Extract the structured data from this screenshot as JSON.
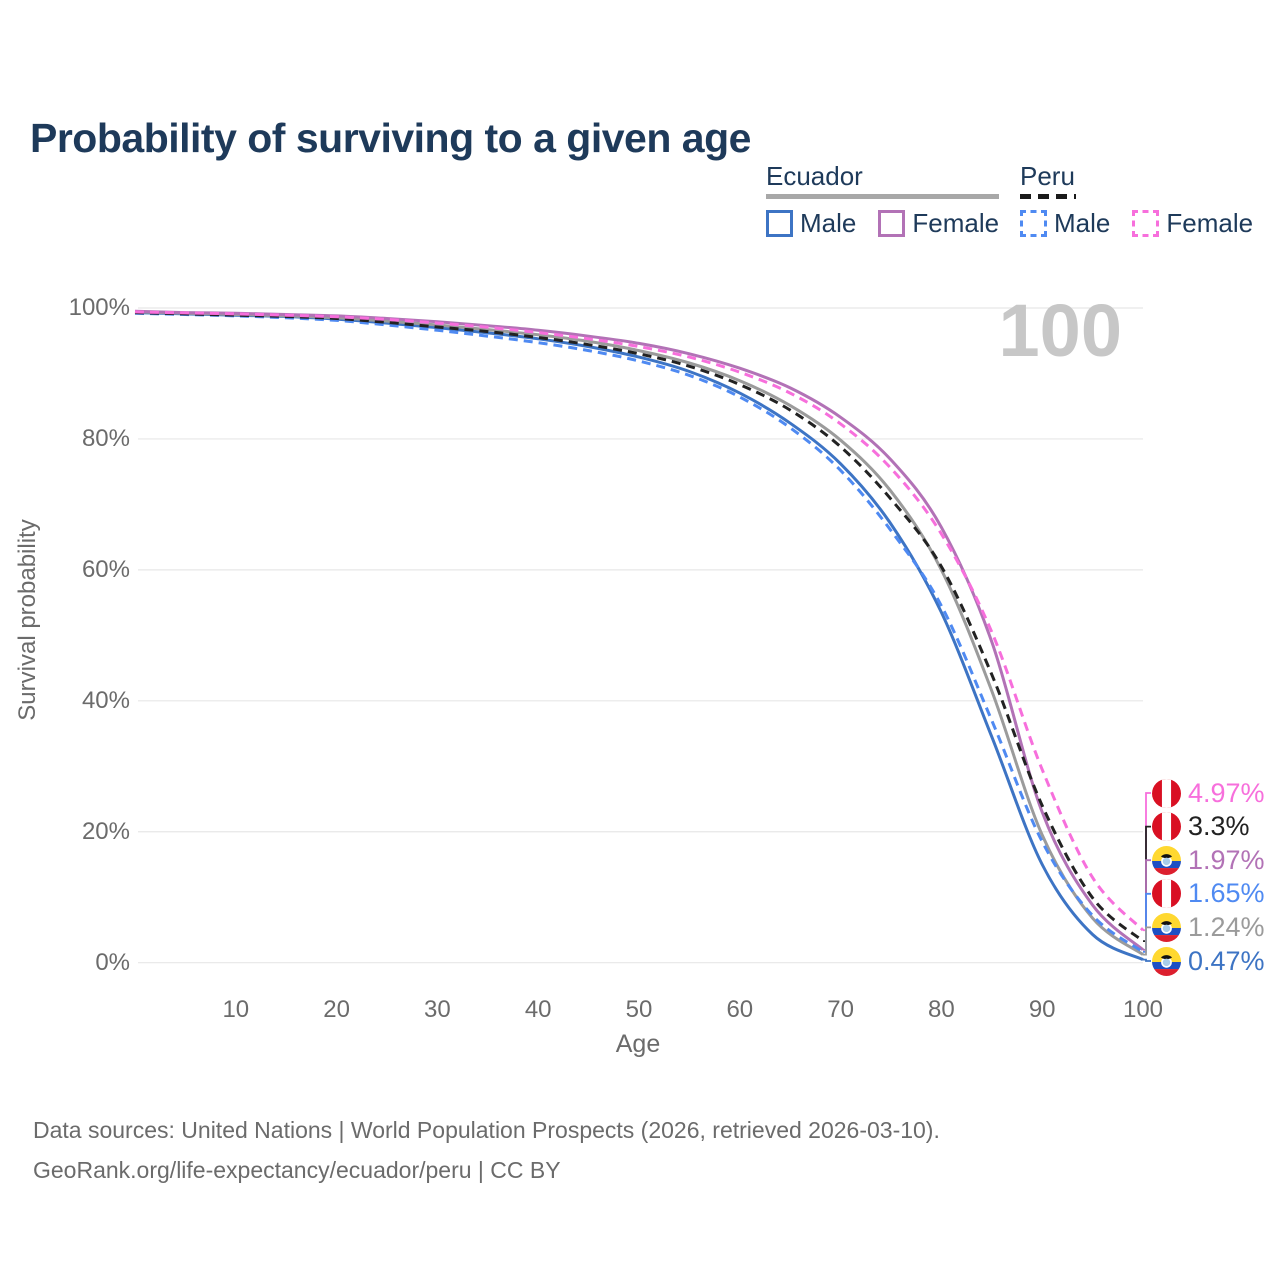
{
  "title": "Probability of surviving to a given age",
  "legend": {
    "groups": [
      {
        "name": "Ecuador",
        "line_style": "solid",
        "underline_color": "#a8a8a8",
        "items": [
          {
            "label": "Male",
            "color": "#3d74c4"
          },
          {
            "label": "Female",
            "color": "#b272b6"
          }
        ]
      },
      {
        "name": "Peru",
        "line_style": "dashed",
        "underline_color": "#1a1a1a",
        "items": [
          {
            "label": "Male",
            "color": "#4f8af2"
          },
          {
            "label": "Female",
            "color": "#f76fdc"
          }
        ]
      }
    ]
  },
  "chart_data": {
    "type": "line",
    "title": "Probability of surviving to a given age",
    "xlabel": "Age",
    "ylabel": "Survival probability",
    "xlim": [
      0,
      100
    ],
    "ylim": [
      0,
      100
    ],
    "grid": "horizontal",
    "legend_position": "top-right",
    "watermark": "100",
    "xticks": [
      10,
      20,
      30,
      40,
      50,
      60,
      70,
      80,
      90,
      100
    ],
    "yticks": [
      0,
      20,
      40,
      60,
      80,
      100
    ],
    "yticklabels": [
      "0%",
      "20%",
      "40%",
      "60%",
      "80%",
      "100%"
    ],
    "x": [
      0,
      5,
      10,
      15,
      20,
      25,
      30,
      35,
      40,
      45,
      50,
      55,
      60,
      65,
      70,
      75,
      80,
      85,
      90,
      95,
      100
    ],
    "series": [
      {
        "name": "Ecuador Male",
        "country": "Ecuador",
        "group": "Male",
        "style": "solid",
        "color": "#3d74c4",
        "end_label": "0.47%",
        "flag": "ecuador",
        "values": [
          99.3,
          99.1,
          98.9,
          98.7,
          98.3,
          97.7,
          97.0,
          96.2,
          95.3,
          94.1,
          92.5,
          90.3,
          87.0,
          82.4,
          76.2,
          67.0,
          53.5,
          34.5,
          15.0,
          4.3,
          0.47
        ]
      },
      {
        "name": "Ecuador combined",
        "country": "Ecuador",
        "group": "All",
        "style": "solid",
        "color": "#9b9b9b",
        "end_label": "1.24%",
        "flag": "ecuador",
        "values": [
          99.4,
          99.2,
          99.0,
          98.8,
          98.5,
          98.0,
          97.4,
          96.7,
          95.9,
          94.9,
          93.5,
          91.6,
          88.9,
          85.1,
          79.8,
          72.0,
          60.0,
          41.5,
          19.5,
          6.8,
          1.24
        ]
      },
      {
        "name": "Ecuador Female",
        "country": "Ecuador",
        "group": "Female",
        "style": "solid",
        "color": "#b272b6",
        "end_label": "1.97%",
        "flag": "ecuador",
        "values": [
          99.5,
          99.3,
          99.2,
          99.0,
          98.8,
          98.4,
          97.9,
          97.3,
          96.6,
          95.7,
          94.6,
          93.0,
          90.8,
          87.8,
          83.3,
          76.8,
          66.5,
          49.0,
          23.0,
          8.8,
          1.97
        ]
      },
      {
        "name": "Peru Male",
        "country": "Peru",
        "group": "Male",
        "style": "dashed",
        "color": "#4f8af2",
        "end_label": "1.65%",
        "flag": "peru",
        "values": [
          99.2,
          99.0,
          98.8,
          98.5,
          98.1,
          97.4,
          96.6,
          95.7,
          94.7,
          93.5,
          91.9,
          89.7,
          86.4,
          81.7,
          75.2,
          66.0,
          54.5,
          37.0,
          18.5,
          7.2,
          1.65
        ]
      },
      {
        "name": "Peru combined",
        "country": "Peru",
        "group": "All",
        "style": "dashed",
        "color": "#222222",
        "end_label": "3.3%",
        "flag": "peru",
        "values": [
          99.3,
          99.1,
          98.9,
          98.7,
          98.4,
          97.8,
          97.1,
          96.4,
          95.5,
          94.4,
          93.0,
          91.1,
          88.3,
          84.4,
          78.8,
          70.8,
          60.5,
          44.0,
          24.0,
          9.9,
          3.3
        ]
      },
      {
        "name": "Peru Female",
        "country": "Peru",
        "group": "Female",
        "style": "dashed",
        "color": "#f76fdc",
        "end_label": "4.97%",
        "flag": "peru",
        "values": [
          99.4,
          99.25,
          99.1,
          98.9,
          98.65,
          98.25,
          97.7,
          97.05,
          96.25,
          95.3,
          94.1,
          92.5,
          90.2,
          87.0,
          82.3,
          75.5,
          65.5,
          50.5,
          29.5,
          13.0,
          4.97
        ]
      }
    ]
  },
  "flags": {
    "ecuador": {
      "yellow": "#FFD830",
      "blue": "#1d4fc4",
      "red": "#DC1F2E"
    },
    "peru": {
      "red": "#D91023",
      "white": "#ffffff"
    }
  },
  "footer": {
    "line1": "Data sources: United Nations | World Population Prospects (2026, retrieved 2026-03-10).",
    "line2": "GeoRank.org/life-expectancy/ecuador/peru | CC BY"
  }
}
